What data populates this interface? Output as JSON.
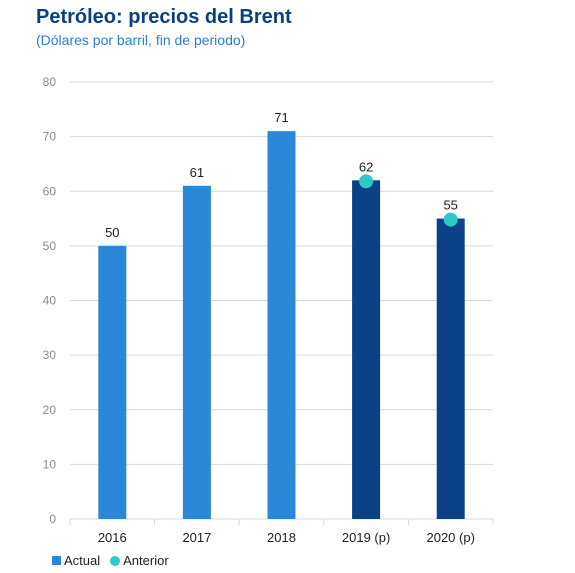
{
  "chart_data": {
    "type": "bar",
    "title": "Petróleo: precios del Brent",
    "subtitle": "(Dólares por barril, fin de periodo)",
    "categories": [
      "2016",
      "2017",
      "2018",
      "2019 (p)",
      "2020 (p)"
    ],
    "series": [
      {
        "name": "Actual",
        "values": [
          50,
          61,
          71,
          62,
          55
        ],
        "data_labels": [
          "50",
          "61",
          "71",
          "62",
          "55"
        ],
        "colors": [
          "#2b88d8",
          "#2b88d8",
          "#2b88d8",
          "#0a4285",
          "#0a4285"
        ]
      },
      {
        "name": "Anterior",
        "type": "scatter",
        "values": [
          null,
          null,
          null,
          62,
          55
        ],
        "color": "#2ec9c9"
      }
    ],
    "ylim": [
      0,
      80
    ],
    "yticks": [
      0,
      10,
      20,
      30,
      40,
      50,
      60,
      70,
      80
    ],
    "grid": true,
    "legend_position": "bottom-left"
  },
  "legend": {
    "actual_label": "Actual",
    "anterior_label": "Anterior"
  }
}
